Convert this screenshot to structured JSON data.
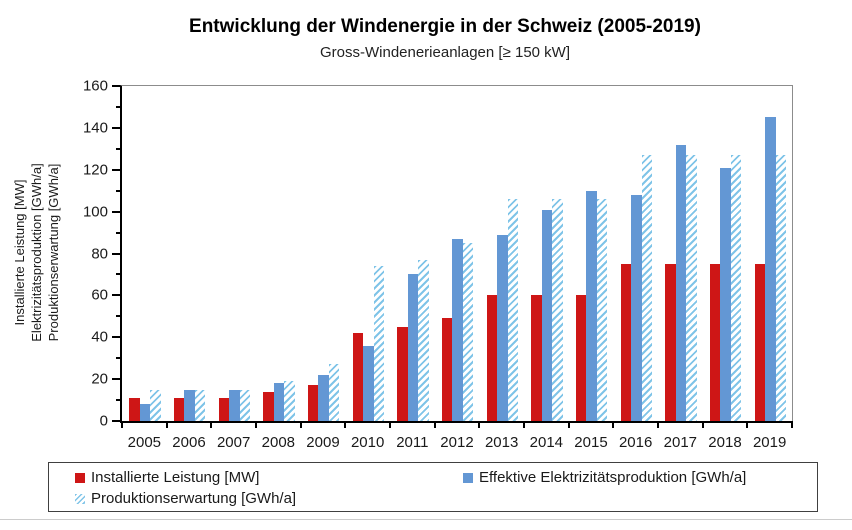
{
  "title": "Entwicklung der Windenergie in der Schweiz (2005-2019)",
  "subtitle": "Gross-Windenerieanlagen [≥ 150 kW]",
  "y_axis_title_lines": [
    "Installierte Leistung [MW]",
    "Elektrizitätsproduktion [GWh/a]",
    "Produktionserwartung [GWh/a]"
  ],
  "colors": {
    "red": "#ce1616",
    "blue": "#6397d4",
    "hatch": "#7fc4e8",
    "axis": "#000000",
    "plot_border": "#8c8c8c"
  },
  "legend": {
    "items": [
      {
        "label": "Installierte Leistung [MW]",
        "swatch": "solid-red"
      },
      {
        "label": "Effektive Elektrizitätsproduktion [GWh/a]",
        "swatch": "solid-blue"
      },
      {
        "label": "Produktionserwartung [GWh/a]",
        "swatch": "hatched"
      }
    ]
  },
  "chart_data": {
    "type": "bar",
    "title": "Entwicklung der Windenergie in der Schweiz (2005-2019)",
    "subtitle": "Gross-Windenerieanlagen [≥ 150 kW]",
    "categories": [
      "2005",
      "2006",
      "2007",
      "2008",
      "2009",
      "2010",
      "2011",
      "2012",
      "2013",
      "2014",
      "2015",
      "2016",
      "2017",
      "2018",
      "2019"
    ],
    "series": [
      {
        "name": "Installierte Leistung [MW]",
        "style": "solid-red",
        "values": [
          11,
          11,
          11,
          14,
          17,
          42,
          45,
          49,
          60,
          60,
          60,
          75,
          75,
          75,
          75
        ]
      },
      {
        "name": "Effektive Elektrizitätsproduktion [GWh/a]",
        "style": "solid-blue",
        "values": [
          8,
          15,
          15,
          18,
          22,
          36,
          70,
          87,
          89,
          101,
          110,
          108,
          132,
          121,
          145
        ]
      },
      {
        "name": "Produktionserwartung [GWh/a]",
        "style": "hatched",
        "values": [
          15,
          15,
          15,
          19,
          27,
          74,
          77,
          85,
          106,
          106,
          106,
          127,
          127,
          127,
          127
        ]
      }
    ],
    "xlabel": "",
    "ylabel": "Installierte Leistung [MW] / Elektrizitätsproduktion [GWh/a] / Produktionserwartung [GWh/a]",
    "ylim": [
      0,
      160
    ],
    "y_major_ticks": [
      0,
      20,
      40,
      60,
      80,
      100,
      120,
      140,
      160
    ],
    "y_minor_tick_step": 10,
    "grid": "off",
    "legend_position": "bottom"
  }
}
